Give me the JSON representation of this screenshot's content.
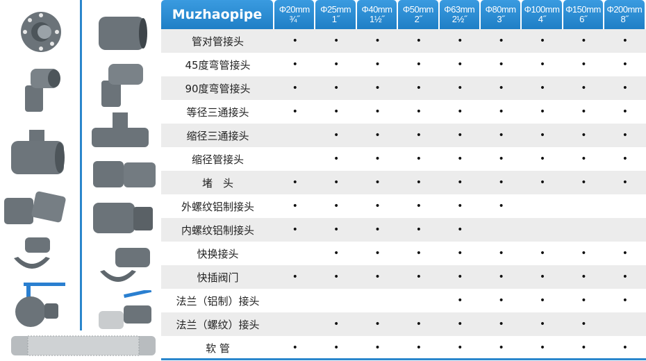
{
  "header": {
    "brand": "Muzhaopipe",
    "sizes": [
      {
        "mm": "Φ20mm",
        "inch": "¾˝"
      },
      {
        "mm": "Φ25mm",
        "inch": "1˝"
      },
      {
        "mm": "Φ40mm",
        "inch": "1½˝"
      },
      {
        "mm": "Φ50mm",
        "inch": "2˝"
      },
      {
        "mm": "Φ63mm",
        "inch": "2½˝"
      },
      {
        "mm": "Φ80mm",
        "inch": "3˝"
      },
      {
        "mm": "Φ100mm",
        "inch": "4˝"
      },
      {
        "mm": "Φ150mm",
        "inch": "6˝"
      },
      {
        "mm": "Φ200mm",
        "inch": "8˝"
      }
    ]
  },
  "dot": "•",
  "rows": [
    {
      "name": "管对管接头",
      "avail": [
        1,
        1,
        1,
        1,
        1,
        1,
        1,
        1,
        1
      ]
    },
    {
      "name": "45度弯管接头",
      "avail": [
        1,
        1,
        1,
        1,
        1,
        1,
        1,
        1,
        1
      ]
    },
    {
      "name": "90度弯管接头",
      "avail": [
        1,
        1,
        1,
        1,
        1,
        1,
        1,
        1,
        1
      ]
    },
    {
      "name": "等径三通接头",
      "avail": [
        1,
        1,
        1,
        1,
        1,
        1,
        1,
        1,
        1
      ]
    },
    {
      "name": "缩径三通接头",
      "avail": [
        0,
        1,
        1,
        1,
        1,
        1,
        1,
        1,
        1
      ]
    },
    {
      "name": "缩径管接头",
      "avail": [
        0,
        1,
        1,
        1,
        1,
        1,
        1,
        1,
        1
      ]
    },
    {
      "name": "堵　头",
      "avail": [
        1,
        1,
        1,
        1,
        1,
        1,
        1,
        1,
        1
      ]
    },
    {
      "name": "外螺纹铝制接头",
      "avail": [
        1,
        1,
        1,
        1,
        1,
        1,
        0,
        0,
        0
      ]
    },
    {
      "name": "内螺纹铝制接头",
      "avail": [
        1,
        1,
        1,
        1,
        1,
        0,
        0,
        0,
        0
      ]
    },
    {
      "name": "快换接头",
      "avail": [
        0,
        1,
        1,
        1,
        1,
        1,
        1,
        1,
        1
      ]
    },
    {
      "name": "快插阀门",
      "avail": [
        1,
        1,
        1,
        1,
        1,
        1,
        1,
        1,
        1
      ]
    },
    {
      "name": "法兰（铝制）接头",
      "avail": [
        0,
        0,
        0,
        0,
        1,
        1,
        1,
        1,
        1
      ]
    },
    {
      "name": "法兰（螺纹）接头",
      "avail": [
        0,
        1,
        1,
        1,
        1,
        1,
        1,
        1,
        0
      ]
    },
    {
      "name": "软 管",
      "avail": [
        1,
        1,
        1,
        1,
        1,
        1,
        1,
        1,
        1
      ]
    }
  ],
  "colors": {
    "accent": "#2a86cc",
    "row_alt": "#ececec",
    "fitting_gray": "#5f676d"
  }
}
